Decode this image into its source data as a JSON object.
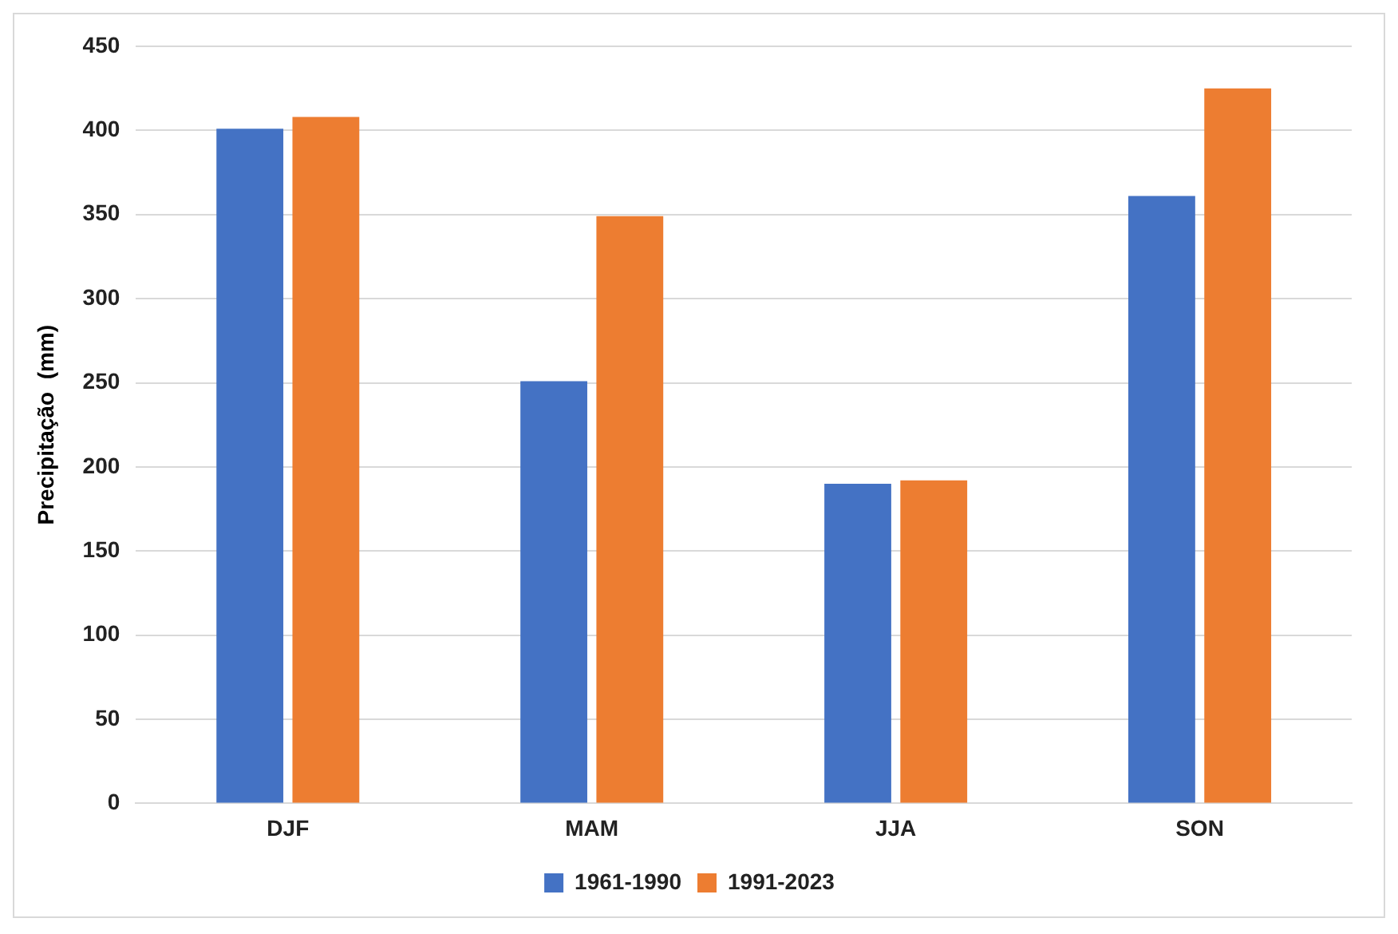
{
  "chart_data": {
    "type": "bar",
    "ylabel": "Precipitação  (mm)",
    "categories": [
      "DJF",
      "MAM",
      "JJA",
      "SON"
    ],
    "series": [
      {
        "name": "1961-1990",
        "color": "#4472c4",
        "values": [
          401,
          251,
          190,
          361
        ]
      },
      {
        "name": "1991-2023",
        "color": "#ed7d31",
        "values": [
          408,
          349,
          192,
          425
        ]
      }
    ],
    "ylim": [
      0,
      450
    ],
    "yticks": [
      0,
      50,
      100,
      150,
      200,
      250,
      300,
      350,
      400,
      450
    ],
    "grid": "y",
    "legend": "bottom"
  }
}
